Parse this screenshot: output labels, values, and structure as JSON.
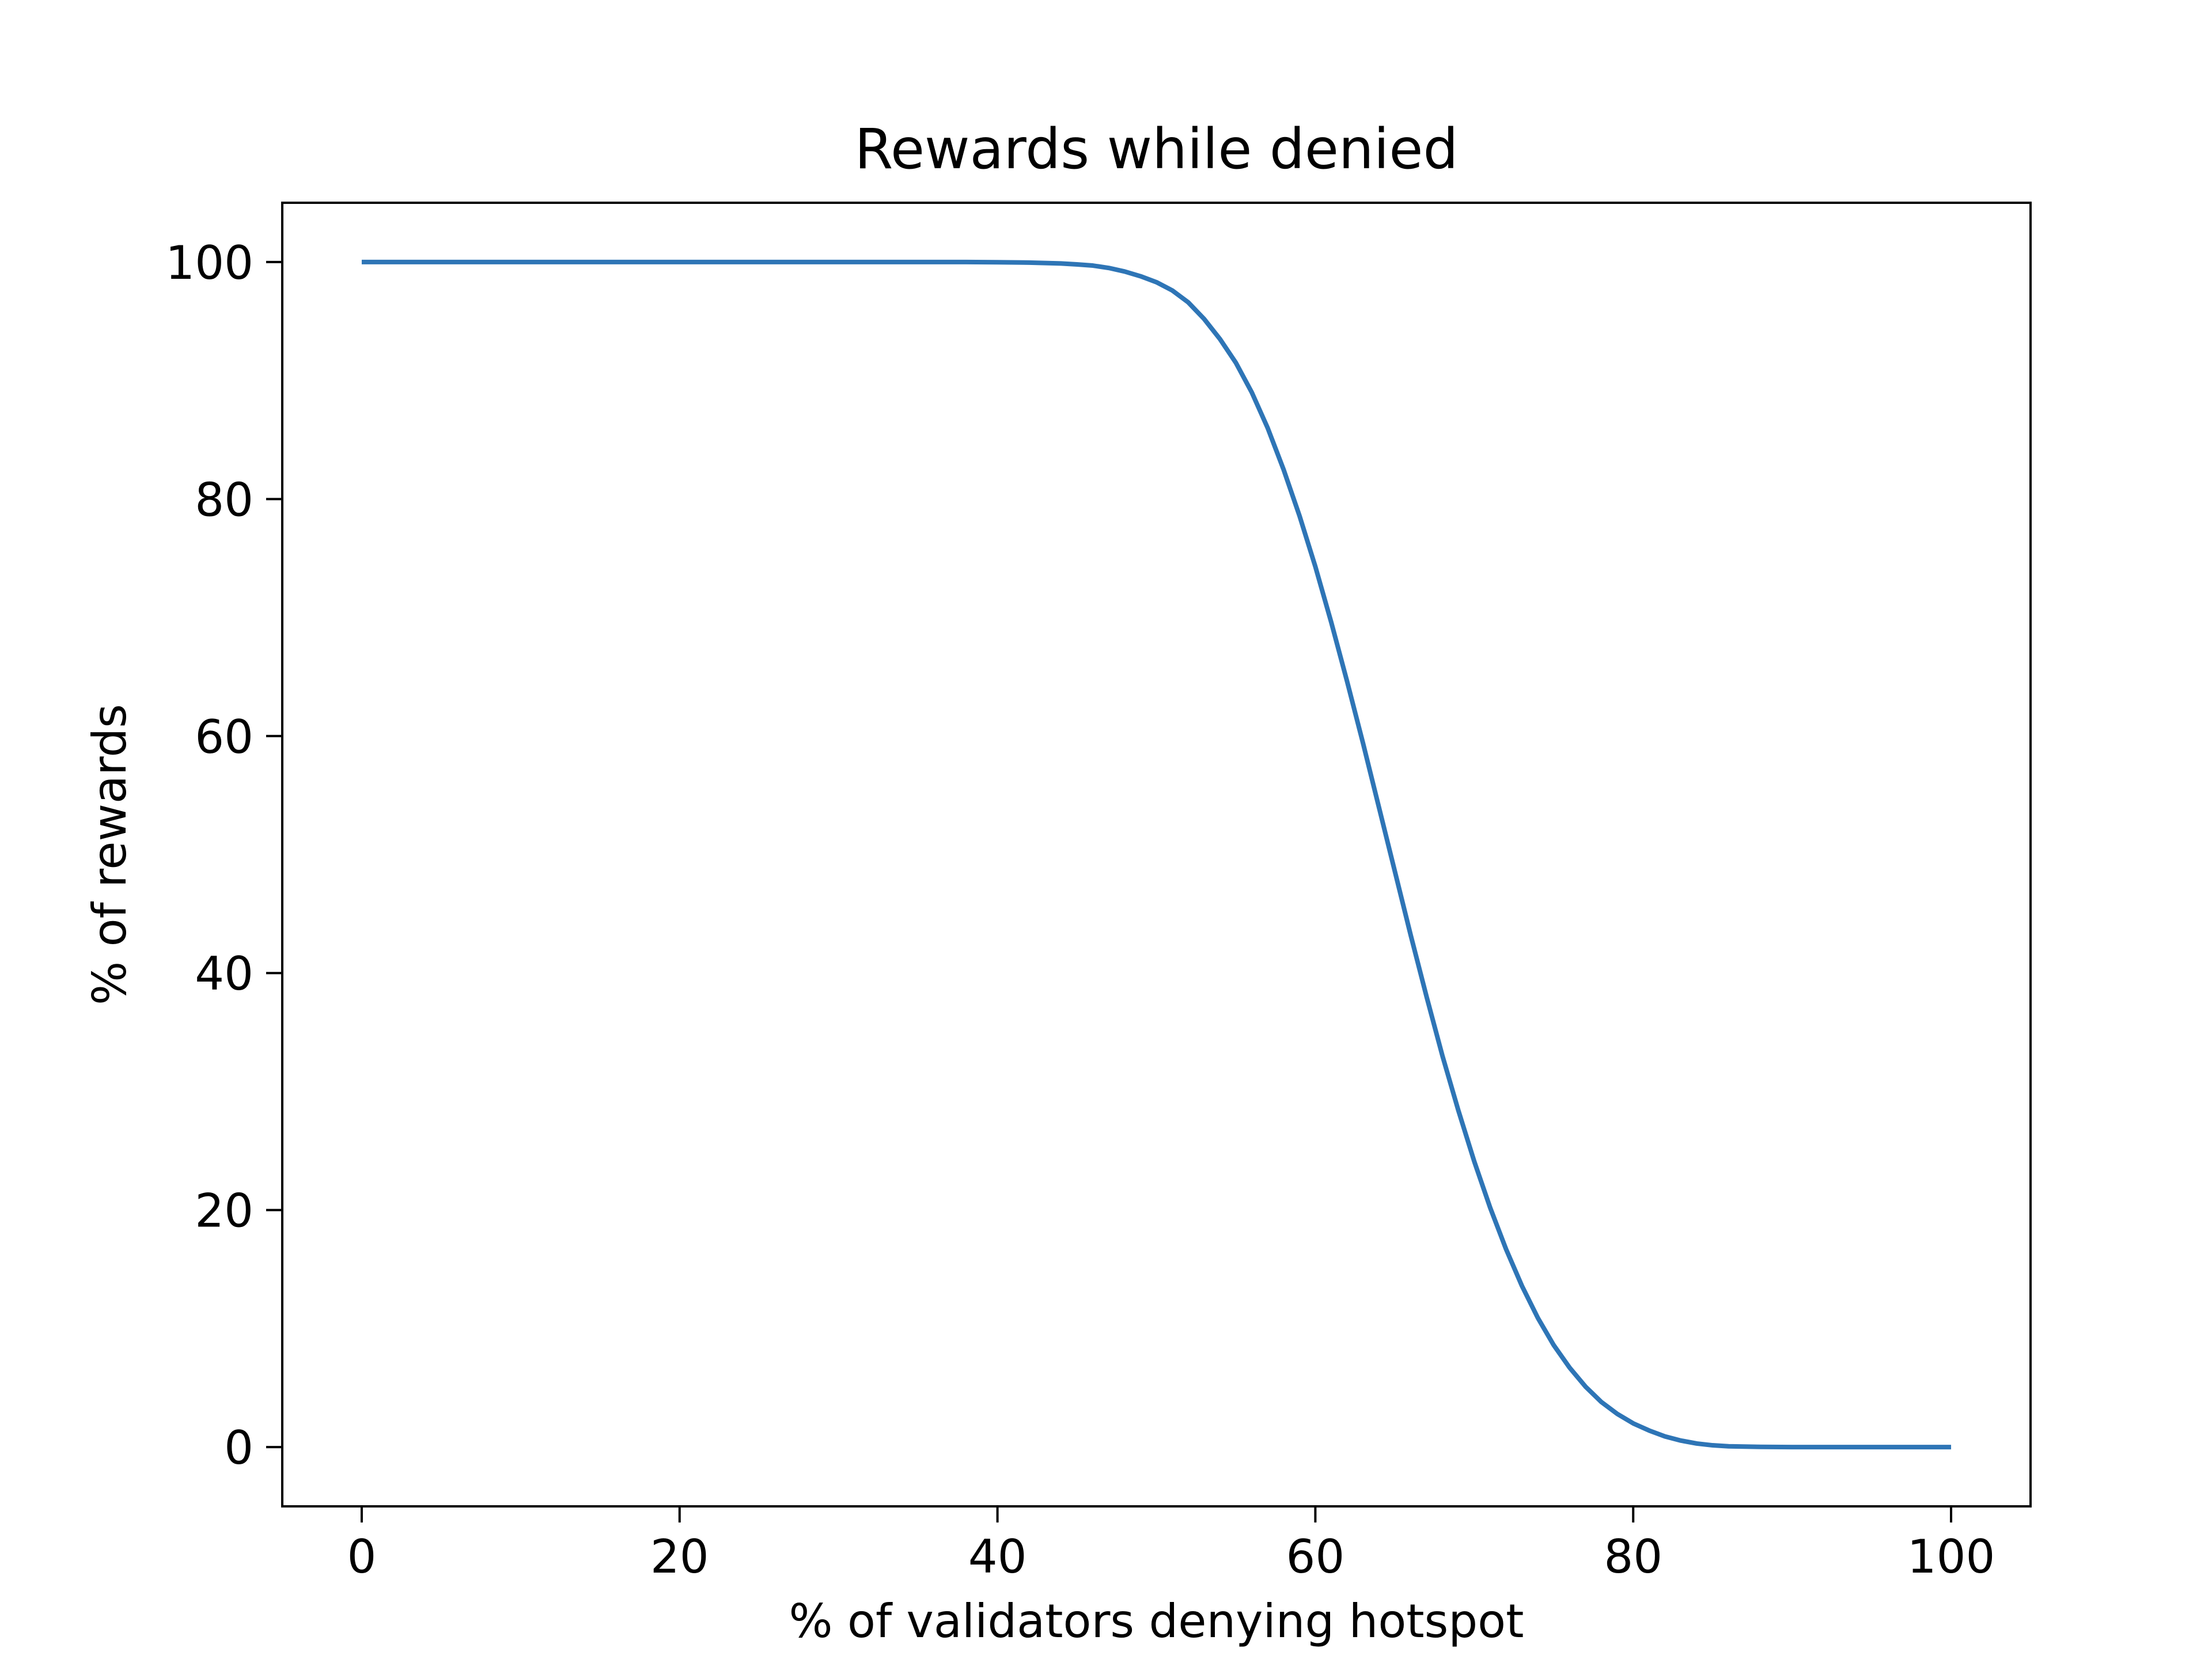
{
  "chart_data": {
    "type": "line",
    "title": "Rewards while denied",
    "xlabel": "% of validators denying hotspot",
    "ylabel": "% of rewards",
    "xlim": [
      -5,
      105
    ],
    "ylim": [
      -5,
      105
    ],
    "xticks": [
      0,
      20,
      40,
      60,
      80,
      100
    ],
    "yticks": [
      0,
      20,
      40,
      60,
      80,
      100
    ],
    "grid": false,
    "series": [
      {
        "color": "#2e75b6",
        "x": [
          0,
          5,
          10,
          15,
          20,
          25,
          30,
          35,
          38,
          40,
          42,
          44,
          45,
          46,
          47,
          48,
          49,
          50,
          51,
          52,
          53,
          54,
          55,
          56,
          57,
          58,
          59,
          60,
          61,
          62,
          63,
          64,
          65,
          66,
          67,
          68,
          69,
          70,
          71,
          72,
          73,
          74,
          75,
          76,
          77,
          78,
          79,
          80,
          81,
          82,
          83,
          84,
          85,
          86,
          88,
          90,
          95,
          100
        ],
        "y": [
          100,
          100,
          100,
          100,
          100,
          100,
          100,
          100,
          100,
          99.98,
          99.95,
          99.88,
          99.8,
          99.7,
          99.5,
          99.2,
          98.8,
          98.3,
          97.6,
          96.6,
          95.2,
          93.5,
          91.5,
          89.0,
          86.0,
          82.5,
          78.6,
          74.3,
          69.6,
          64.6,
          59.4,
          54.0,
          48.6,
          43.2,
          38.0,
          33.0,
          28.4,
          24.1,
          20.2,
          16.7,
          13.6,
          10.9,
          8.6,
          6.7,
          5.1,
          3.8,
          2.8,
          2.0,
          1.4,
          0.9,
          0.55,
          0.3,
          0.15,
          0.07,
          0.02,
          0,
          0,
          0
        ]
      }
    ]
  }
}
